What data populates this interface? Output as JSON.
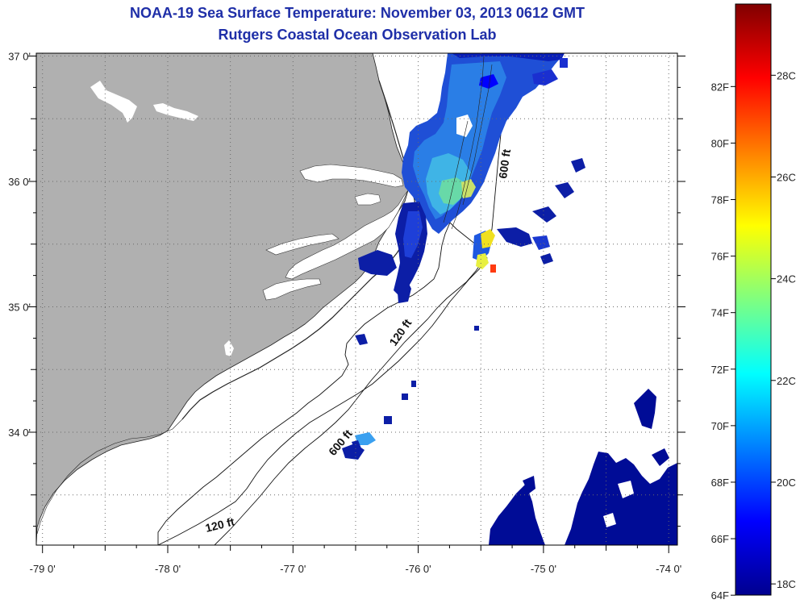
{
  "header": {
    "title": "NOAA-19 Sea Surface Temperature:  November 03, 2013 0612 GMT",
    "subtitle": "Rutgers Coastal Ocean Observation Lab"
  },
  "map": {
    "lat_range": [
      33.1,
      37.0
    ],
    "lon_range": [
      -79.25,
      -73.7
    ],
    "lat_labels": [
      {
        "value": 37.0,
        "label": "37 0'"
      },
      {
        "value": 36.0,
        "label": "36 0'"
      },
      {
        "value": 35.0,
        "label": "35 0'"
      },
      {
        "value": 34.0,
        "label": "34 0'"
      }
    ],
    "lon_labels": [
      {
        "value": -79.0,
        "label": "-79 0'"
      },
      {
        "value": -78.0,
        "label": "-78 0'"
      },
      {
        "value": -77.0,
        "label": "-77 0'"
      },
      {
        "value": -76.0,
        "label": "-76 0'"
      },
      {
        "value": -75.0,
        "label": "-75 0'"
      },
      {
        "value": -74.0,
        "label": "-74 0'"
      }
    ],
    "contour_labels": [
      {
        "text": "600 ft",
        "position": "upper right, near Gulf Stream"
      },
      {
        "text": "120 ft",
        "position": "middle, off Cape Lookout"
      },
      {
        "text": "600 ft",
        "position": "lower middle"
      },
      {
        "text": "120 ft",
        "position": "lower left"
      }
    ],
    "colors": {
      "land": "#b0b0b0",
      "water": "#ffffff",
      "grid": "#6a6a6a",
      "contour": "#111111"
    }
  },
  "colorbar": {
    "fahrenheit_labels": [
      "82F",
      "80F",
      "78F",
      "76F",
      "74F",
      "72F",
      "70F",
      "68F",
      "66F",
      "64F"
    ],
    "celsius_labels": [
      "28C",
      "26C",
      "24C",
      "22C",
      "20C",
      "18C"
    ],
    "fahrenheit_values": [
      82,
      80,
      78,
      76,
      74,
      72,
      70,
      68,
      66,
      64
    ],
    "celsius_values": [
      28,
      26,
      24,
      22,
      20,
      18
    ],
    "range_celsius": [
      17.78,
      29.4
    ],
    "colormap": "jet"
  }
}
